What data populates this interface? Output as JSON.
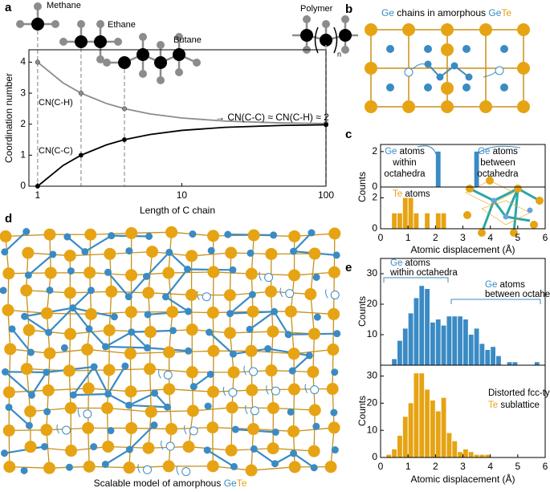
{
  "panel_letters": [
    "a",
    "b",
    "c",
    "d",
    "e"
  ],
  "panel_a_molecules": {
    "labels": [
      "Methane",
      "Ethane",
      "Butane",
      "Polymer"
    ],
    "subscript": "n"
  },
  "panel_b_title": [
    {
      "text": "Ge",
      "color": "#3a8bc4"
    },
    {
      "text": " chains in amorphous ",
      "color": "#000000"
    },
    {
      "text": "Ge",
      "color": "#3a8bc4"
    },
    {
      "text": "Te",
      "color": "#e6a313"
    }
  ],
  "panel_d_caption": [
    {
      "text": "Scalable model of amorphous ",
      "color": "#000000"
    },
    {
      "text": "Ge",
      "color": "#3a8bc4"
    },
    {
      "text": "Te",
      "color": "#e6a313"
    }
  ],
  "chart_data": [
    {
      "type": "line",
      "xlabel": "Length of C chain",
      "ylabel": "Coordination number",
      "log_x": true,
      "xlim": [
        0.87,
        100
      ],
      "xticks": [
        1,
        10,
        100
      ],
      "ylim": [
        0,
        4.4
      ],
      "yticks": [
        0,
        1,
        2,
        3,
        4
      ],
      "guides_x": [
        1,
        2,
        4,
        100
      ],
      "x": [
        1,
        1.5,
        2,
        3,
        4,
        6,
        10,
        20,
        50,
        100
      ],
      "series": [
        {
          "name": "CN(C-H)",
          "color": "#8c8c8c",
          "values": [
            4,
            3.333,
            3,
            2.667,
            2.5,
            2.333,
            2.2,
            2.1,
            2.04,
            2.02
          ]
        },
        {
          "name": "CN(C-C)",
          "color": "#000000",
          "values": [
            0,
            0.667,
            1,
            1.333,
            1.5,
            1.667,
            1.8,
            1.9,
            1.96,
            1.98
          ]
        }
      ],
      "annotation": "→ CN(C-C) ≈ CN(C-H) ≈ 2"
    },
    {
      "type": "histogram",
      "color": "#3a8bc4",
      "ylabel": "Counts",
      "xlim": [
        0,
        6
      ],
      "ylim": [
        0,
        2.4
      ],
      "yticks": [
        0,
        2
      ],
      "bins": [
        2.0,
        2.2,
        2.4,
        2.6,
        2.8,
        3.0,
        3.2,
        3.4,
        3.6
      ],
      "values": [
        2,
        0,
        0,
        0,
        0,
        0,
        0,
        2
      ],
      "annotations": [
        {
          "lines": [
            [
              {
                "text": "Ge",
                "color": "#3a8bc4"
              },
              {
                "text": " atoms",
                "color": "#000000"
              }
            ],
            [
              {
                "text": "within",
                "color": "#000000"
              }
            ],
            [
              {
                "text": "octahedra",
                "color": "#000000"
              }
            ]
          ]
        },
        {
          "lines": [
            [
              {
                "text": "Ge",
                "color": "#3a8bc4"
              },
              {
                "text": " atoms",
                "color": "#000000"
              }
            ],
            [
              {
                "text": "between",
                "color": "#000000"
              }
            ],
            [
              {
                "text": "octahedra",
                "color": "#000000"
              }
            ]
          ]
        }
      ]
    },
    {
      "type": "histogram",
      "color": "#e6a313",
      "xlabel": "Atomic displacement (Å)",
      "xlim": [
        0,
        6
      ],
      "xticks": [
        0,
        1,
        2,
        3,
        4,
        5,
        6
      ],
      "ylim": [
        0,
        2.7
      ],
      "yticks": [
        0,
        2
      ],
      "bins": [
        0.4,
        0.6,
        0.8,
        1.0,
        1.2,
        1.4,
        1.6,
        1.8,
        2.0,
        2.2,
        2.4
      ],
      "values": [
        1,
        1,
        2,
        2,
        1,
        0,
        1,
        0,
        1,
        1
      ],
      "annotations": [
        {
          "lines": [
            [
              {
                "text": "Te",
                "color": "#e6a313"
              },
              {
                "text": " atoms",
                "color": "#000000"
              }
            ]
          ]
        }
      ]
    },
    {
      "type": "histogram",
      "color": "#3a8bc4",
      "ylabel": "Counts",
      "xlim": [
        0,
        6
      ],
      "ylim": [
        0,
        35
      ],
      "yticks": [
        10,
        20,
        30
      ],
      "bins": [
        0.4,
        0.6,
        0.8,
        1.0,
        1.2,
        1.4,
        1.6,
        1.8,
        2.0,
        2.2,
        2.4,
        2.6,
        2.8,
        3.0,
        3.2,
        3.4,
        3.6,
        3.8,
        4.0,
        4.2,
        4.4,
        4.6,
        4.8,
        5.0,
        5.2,
        5.4,
        5.6,
        5.8,
        6.0
      ],
      "values": [
        2,
        8,
        12,
        17,
        22,
        26,
        25,
        14,
        15,
        13,
        16,
        16,
        16,
        15,
        10,
        12,
        7,
        5,
        6,
        3,
        0,
        1,
        1,
        0,
        0,
        0,
        1,
        0
      ],
      "annotations": [
        {
          "lines": [
            [
              {
                "text": "Ge",
                "color": "#3a8bc4"
              },
              {
                "text": " atoms",
                "color": "#000000"
              }
            ],
            [
              {
                "text": "within octahedra",
                "color": "#000000"
              }
            ]
          ]
        },
        {
          "lines": [
            [
              {
                "text": "Ge",
                "color": "#3a8bc4"
              },
              {
                "text": " atoms",
                "color": "#000000"
              }
            ],
            [
              {
                "text": "between octahedra",
                "color": "#000000"
              }
            ]
          ]
        }
      ]
    },
    {
      "type": "histogram",
      "color": "#e6a313",
      "ylabel": "Counts",
      "xlabel": "Atomic displacement (Å)",
      "xlim": [
        0,
        6
      ],
      "xticks": [
        0,
        1,
        2,
        3,
        4,
        5,
        6
      ],
      "ylim": [
        0,
        34
      ],
      "yticks": [
        0,
        10,
        20,
        30
      ],
      "bins": [
        0.2,
        0.4,
        0.6,
        0.8,
        1.0,
        1.2,
        1.4,
        1.6,
        1.8,
        2.0,
        2.2,
        2.4,
        2.6,
        2.8,
        3.0,
        3.2,
        3.4,
        3.6,
        3.8,
        4.0
      ],
      "values": [
        1,
        3,
        8,
        15,
        20,
        31,
        31,
        25,
        21,
        17,
        22,
        9,
        6,
        2,
        3,
        2,
        1,
        1,
        1
      ],
      "annotations": [
        {
          "lines": [
            [
              {
                "text": "Distorted fcc-type",
                "color": "#000000"
              }
            ],
            [
              {
                "text": "Te",
                "color": "#e6a313"
              },
              {
                "text": " sublattice",
                "color": "#000000"
              }
            ]
          ]
        }
      ]
    }
  ]
}
